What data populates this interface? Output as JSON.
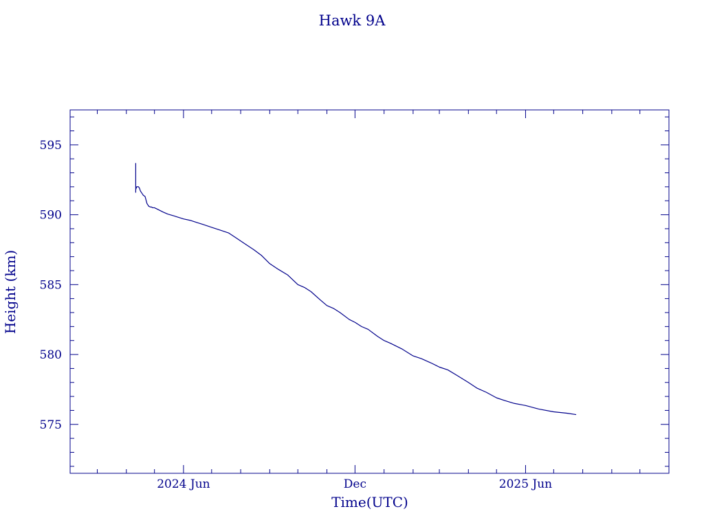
{
  "chart_data": {
    "type": "line",
    "title": "Hawk 9A",
    "xlabel": "Time(UTC)",
    "ylabel": "Height (km)",
    "x_ticks": [
      {
        "date": "2024-06-01",
        "label": "2024 Jun"
      },
      {
        "date": "2024-12-01",
        "label": "Dec"
      },
      {
        "date": "2025-06-01",
        "label": "2025 Jun"
      }
    ],
    "y_ticks": [
      575,
      580,
      585,
      590,
      595
    ],
    "xlim": [
      "2024-02-01",
      "2025-11-01"
    ],
    "ylim": [
      571.5,
      597.5
    ],
    "grid": false,
    "colors": {
      "axis": "#00008b",
      "line": "#00008b",
      "text": "#00008b"
    },
    "series": [
      {
        "x": [
          "2024-04-11",
          "2024-04-11",
          "2024-04-11",
          "2024-04-12",
          "2024-04-13",
          "2024-04-14",
          "2024-04-15",
          "2024-04-16",
          "2024-04-17",
          "2024-04-18",
          "2024-04-19",
          "2024-04-21",
          "2024-04-23",
          "2024-04-25",
          "2024-04-27",
          "2024-04-28",
          "2024-04-29",
          "2024-05-01",
          "2024-05-04",
          "2024-05-10",
          "2024-05-15",
          "2024-05-20",
          "2024-05-25",
          "2024-06-01",
          "2024-06-08",
          "2024-06-15",
          "2024-06-22",
          "2024-07-01",
          "2024-07-10",
          "2024-07-19",
          "2024-07-28",
          "2024-08-06",
          "2024-08-15",
          "2024-08-23",
          "2024-09-01",
          "2024-09-10",
          "2024-09-20",
          "2024-10-01",
          "2024-10-08",
          "2024-10-15",
          "2024-10-25",
          "2024-11-01",
          "2024-11-08",
          "2024-11-15",
          "2024-11-25",
          "2024-12-01",
          "2024-12-08",
          "2024-12-15",
          "2024-12-25",
          "2025-01-01",
          "2025-01-08",
          "2025-01-20",
          "2025-02-01",
          "2025-02-10",
          "2025-02-20",
          "2025-03-01",
          "2025-03-10",
          "2025-03-20",
          "2025-04-01",
          "2025-04-10",
          "2025-04-20",
          "2025-05-01",
          "2025-05-10",
          "2025-05-20",
          "2025-06-01",
          "2025-06-15",
          "2025-07-01",
          "2025-07-15",
          "2025-07-25"
        ],
        "y": [
          593.7,
          591.6,
          591.8,
          592.0,
          592.0,
          592.0,
          591.9,
          591.7,
          591.6,
          591.5,
          591.4,
          591.3,
          590.8,
          590.6,
          590.55,
          590.55,
          590.5,
          590.5,
          590.4,
          590.2,
          590.05,
          589.95,
          589.85,
          589.7,
          589.6,
          589.45,
          589.3,
          589.1,
          588.9,
          588.7,
          588.3,
          587.9,
          587.5,
          587.1,
          586.5,
          586.1,
          585.7,
          585.0,
          584.8,
          584.5,
          583.9,
          583.5,
          583.3,
          583.0,
          582.5,
          582.3,
          582.0,
          581.8,
          581.3,
          581.0,
          580.8,
          580.4,
          579.9,
          579.7,
          579.4,
          579.1,
          578.9,
          578.5,
          578.0,
          577.6,
          577.3,
          576.9,
          576.7,
          576.5,
          576.35,
          576.1,
          575.9,
          575.8,
          575.7
        ]
      }
    ]
  }
}
